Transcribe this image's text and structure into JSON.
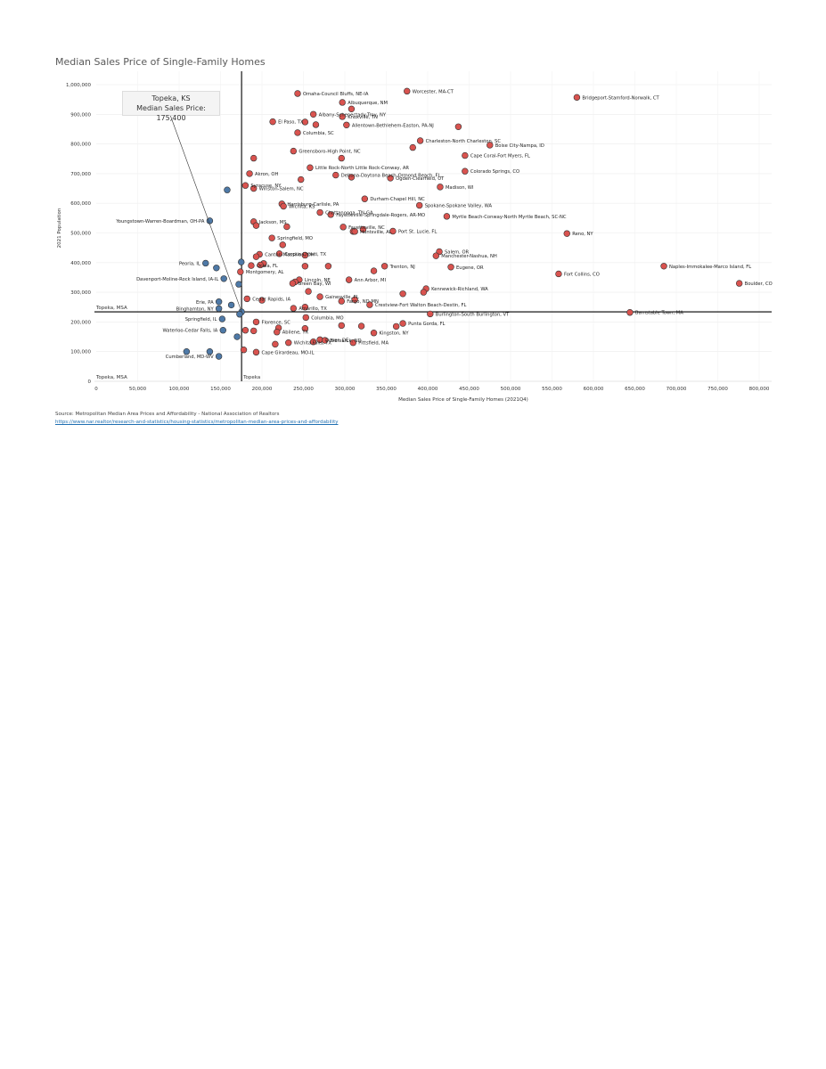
{
  "page": {
    "title": "Median Sales Price of Single-Family Homes",
    "source": "Source: Metropolitan Median Area Prices and Affordability - National Association of Realtors",
    "source_url": "https://www.nar.realtor/research-and-statistics/housing-statistics/metropolitan-median-area-prices-and-affordability"
  },
  "tooltip": {
    "title": "Topeka, KS",
    "detail": "Median Sales Price: 175,400"
  },
  "colors": {
    "above": "#d9534f",
    "below": "#4e79a7",
    "reference_line": "#000000"
  },
  "chart_data": {
    "type": "scatter",
    "xlabel": "Median Sales Price of Single-Family Homes (2021Q4)",
    "ylabel": "2021 Population",
    "xlim": [
      0,
      825000
    ],
    "ylim": [
      0,
      1030000
    ],
    "xticks": [
      "0",
      "50,000",
      "100,000",
      "150,000",
      "200,000",
      "250,000",
      "300,000",
      "350,000",
      "400,000",
      "450,000",
      "500,000",
      "550,000",
      "600,000",
      "650,000",
      "700,000",
      "750,000",
      "800,000"
    ],
    "yticks": [
      "0",
      "100,000",
      "200,000",
      "300,000",
      "400,000",
      "500,000",
      "600,000",
      "700,000",
      "800,000",
      "900,000",
      "1,000,000"
    ],
    "reference_lines": {
      "x": 175400,
      "x_label": "Topeka",
      "y": 234000,
      "y_label": "Topeka, MSA",
      "y_label_zero": "Topeka, MSA"
    },
    "points": [
      {
        "name": "Worcester, MA-CT",
        "x": 375000,
        "y": 978000,
        "c": "r"
      },
      {
        "name": "Bridgeport-Stamford-Norwalk, CT",
        "x": 580000,
        "y": 957000,
        "c": "r"
      },
      {
        "name": "Omaha-Council Bluffs, NE-IA",
        "x": 243000,
        "y": 970000,
        "c": "r"
      },
      {
        "name": "Albuquerque, NM",
        "x": 297000,
        "y": 940000,
        "c": "r"
      },
      {
        "name": "",
        "x": 308000,
        "y": 918000,
        "c": "r"
      },
      {
        "name": "Albany-Schenectady-Troy, NY",
        "x": 262000,
        "y": 900000,
        "c": "r"
      },
      {
        "name": "Knoxville, TN",
        "x": 297000,
        "y": 892000,
        "c": "r"
      },
      {
        "name": "El Paso, TX",
        "x": 213000,
        "y": 875000,
        "c": "r"
      },
      {
        "name": "",
        "x": 252000,
        "y": 874000,
        "c": "r"
      },
      {
        "name": "",
        "x": 265000,
        "y": 865000,
        "c": "r"
      },
      {
        "name": "Allentown-Bethlehem-Easton, PA-NJ",
        "x": 302000,
        "y": 864000,
        "c": "r"
      },
      {
        "name": "",
        "x": 437000,
        "y": 858000,
        "c": "r"
      },
      {
        "name": "Columbia, SC",
        "x": 243000,
        "y": 838000,
        "c": "r"
      },
      {
        "name": "Charleston-North Charleston, SC",
        "x": 391000,
        "y": 811000,
        "c": "r"
      },
      {
        "name": "Boise City-Nampa, ID",
        "x": 475000,
        "y": 796000,
        "c": "r"
      },
      {
        "name": "",
        "x": 382000,
        "y": 788000,
        "c": "r"
      },
      {
        "name": "Greensboro-High Point, NC",
        "x": 238000,
        "y": 776000,
        "c": "r"
      },
      {
        "name": "Cape Coral-Fort Myers, FL",
        "x": 445000,
        "y": 761000,
        "c": "r"
      },
      {
        "name": "",
        "x": 190000,
        "y": 752000,
        "c": "r"
      },
      {
        "name": "",
        "x": 296000,
        "y": 752000,
        "c": "r"
      },
      {
        "name": "Little Rock-North Little Rock-Conway, AR",
        "x": 258000,
        "y": 720000,
        "c": "r"
      },
      {
        "name": "Colorado Springs, CO",
        "x": 445000,
        "y": 708000,
        "c": "r"
      },
      {
        "name": "Akron, OH",
        "x": 185000,
        "y": 700000,
        "c": "r"
      },
      {
        "name": "Deltona-Daytona Beach-Ormond Beach, FL",
        "x": 289000,
        "y": 695000,
        "c": "r"
      },
      {
        "name": "",
        "x": 308000,
        "y": 688000,
        "c": "r"
      },
      {
        "name": "Ogden-Clearfield, UT",
        "x": 355000,
        "y": 685000,
        "c": "r"
      },
      {
        "name": "",
        "x": 247000,
        "y": 680000,
        "c": "r"
      },
      {
        "name": "Syracuse, NY",
        "x": 180000,
        "y": 660000,
        "c": "r"
      },
      {
        "name": "Madison, WI",
        "x": 415000,
        "y": 655000,
        "c": "r"
      },
      {
        "name": "Winston-Salem, NC",
        "x": 190000,
        "y": 650000,
        "c": "r"
      },
      {
        "name": "",
        "x": 158000,
        "y": 645000,
        "c": "b"
      },
      {
        "name": "Durham-Chapel Hill, NC",
        "x": 324000,
        "y": 615000,
        "c": "r"
      },
      {
        "name": "Harrisburg-Carlisle, PA",
        "x": 224000,
        "y": 598000,
        "c": "r"
      },
      {
        "name": "Spokane-Spokane Valley, WA",
        "x": 390000,
        "y": 593000,
        "c": "r"
      },
      {
        "name": "Wichita, KS",
        "x": 226000,
        "y": 590000,
        "c": "r"
      },
      {
        "name": "Chattanooga, TN-GA",
        "x": 270000,
        "y": 569000,
        "c": "r"
      },
      {
        "name": "Fayetteville-Springdale-Rogers, AR-MO",
        "x": 283000,
        "y": 562000,
        "c": "r"
      },
      {
        "name": "Myrtle Beach-Conway-North Myrtle Beach, SC-NC",
        "x": 423000,
        "y": 556000,
        "c": "r"
      },
      {
        "name": "Youngstown-Warren-Boardman, OH-PA",
        "x": 137000,
        "y": 541000,
        "c": "b"
      },
      {
        "name": "Jackson, MS",
        "x": 190000,
        "y": 538000,
        "c": "r"
      },
      {
        "name": "",
        "x": 193000,
        "y": 525000,
        "c": "r"
      },
      {
        "name": "",
        "x": 230000,
        "y": 521000,
        "c": "r"
      },
      {
        "name": "",
        "x": 322000,
        "y": 512000,
        "c": "r"
      },
      {
        "name": "Port St. Lucie, FL",
        "x": 358000,
        "y": 506000,
        "c": "r"
      },
      {
        "name": "",
        "x": 310000,
        "y": 505000,
        "c": "r"
      },
      {
        "name": "Fayetteville, NC",
        "x": 298000,
        "y": 520000,
        "c": "r"
      },
      {
        "name": "Huntsville, AL",
        "x": 312000,
        "y": 505000,
        "c": "r"
      },
      {
        "name": "Reno, NY",
        "x": 568000,
        "y": 498000,
        "c": "r"
      },
      {
        "name": "Springfield, MO",
        "x": 212000,
        "y": 483000,
        "c": "r"
      },
      {
        "name": "",
        "x": 225000,
        "y": 460000,
        "c": "r"
      },
      {
        "name": "Salem, OR",
        "x": 414000,
        "y": 437000,
        "c": "r"
      },
      {
        "name": "Corpus Christi, TX",
        "x": 221000,
        "y": 430000,
        "c": "r"
      },
      {
        "name": "",
        "x": 252000,
        "y": 425000,
        "c": "r"
      },
      {
        "name": "Manchester-Nashua, NH",
        "x": 410000,
        "y": 423000,
        "c": "r"
      },
      {
        "name": "Canton-Massillon, OH",
        "x": 197000,
        "y": 428000,
        "c": "r"
      },
      {
        "name": "",
        "x": 193000,
        "y": 420000,
        "c": "r"
      },
      {
        "name": "",
        "x": 175000,
        "y": 402000,
        "c": "b"
      },
      {
        "name": "Peoria, IL",
        "x": 132000,
        "y": 398000,
        "c": "b"
      },
      {
        "name": "",
        "x": 202000,
        "y": 397000,
        "c": "r"
      },
      {
        "name": "",
        "x": 198000,
        "y": 392000,
        "c": "r"
      },
      {
        "name": "Ocala, FL",
        "x": 187000,
        "y": 390000,
        "c": "r"
      },
      {
        "name": "",
        "x": 252000,
        "y": 388000,
        "c": "r"
      },
      {
        "name": "",
        "x": 280000,
        "y": 388000,
        "c": "r"
      },
      {
        "name": "Trenton, NJ",
        "x": 348000,
        "y": 388000,
        "c": "r"
      },
      {
        "name": "Eugene, OR",
        "x": 428000,
        "y": 385000,
        "c": "r"
      },
      {
        "name": "Naples-Immokalee-Marco Island, FL",
        "x": 685000,
        "y": 388000,
        "c": "r"
      },
      {
        "name": "",
        "x": 145000,
        "y": 382000,
        "c": "b"
      },
      {
        "name": "",
        "x": 335000,
        "y": 372000,
        "c": "r"
      },
      {
        "name": "Montgomery, AL",
        "x": 174000,
        "y": 369000,
        "c": "r"
      },
      {
        "name": "Fort Collins, CO",
        "x": 558000,
        "y": 362000,
        "c": "r"
      },
      {
        "name": "Davenport-Moline-Rock Island, IA-IL",
        "x": 154000,
        "y": 346000,
        "c": "b"
      },
      {
        "name": "Lincoln, NE",
        "x": 245000,
        "y": 342000,
        "c": "r"
      },
      {
        "name": "Ann Arbor, MI",
        "x": 305000,
        "y": 342000,
        "c": "r"
      },
      {
        "name": "",
        "x": 240000,
        "y": 335000,
        "c": "r"
      },
      {
        "name": "Green Bay, WI",
        "x": 237000,
        "y": 330000,
        "c": "r"
      },
      {
        "name": "Boulder, CO",
        "x": 776000,
        "y": 330000,
        "c": "r"
      },
      {
        "name": "",
        "x": 172000,
        "y": 327000,
        "c": "b"
      },
      {
        "name": "Kennewick-Richland, WA",
        "x": 398000,
        "y": 312000,
        "c": "r"
      },
      {
        "name": "",
        "x": 256000,
        "y": 303000,
        "c": "r"
      },
      {
        "name": "",
        "x": 395000,
        "y": 300000,
        "c": "r"
      },
      {
        "name": "",
        "x": 370000,
        "y": 295000,
        "c": "r"
      },
      {
        "name": "Gainesville, FL",
        "x": 270000,
        "y": 285000,
        "c": "r"
      },
      {
        "name": "Cedar Rapids, IA",
        "x": 182000,
        "y": 278000,
        "c": "r"
      },
      {
        "name": "",
        "x": 200000,
        "y": 273000,
        "c": "r"
      },
      {
        "name": "",
        "x": 312000,
        "y": 275000,
        "c": "r"
      },
      {
        "name": "Fargo, ND-MN",
        "x": 296000,
        "y": 270000,
        "c": "r"
      },
      {
        "name": "Erie, PA",
        "x": 148000,
        "y": 268000,
        "c": "b"
      },
      {
        "name": "Crestview-Fort Walton Beach-Destin, FL",
        "x": 330000,
        "y": 258000,
        "c": "r"
      },
      {
        "name": "",
        "x": 163000,
        "y": 257000,
        "c": "b"
      },
      {
        "name": "Binghamton, NY",
        "x": 148000,
        "y": 245000,
        "c": "b"
      },
      {
        "name": "Amarillo, TX",
        "x": 238000,
        "y": 246000,
        "c": "r"
      },
      {
        "name": "",
        "x": 252000,
        "y": 250000,
        "c": "r"
      },
      {
        "name": "",
        "x": 175400,
        "y": 234000,
        "c": "b"
      },
      {
        "name": "",
        "x": 173000,
        "y": 226000,
        "c": "b"
      },
      {
        "name": "Burlington-South Burlington, VT",
        "x": 403000,
        "y": 227000,
        "c": "r"
      },
      {
        "name": "Barnstable Town, MA",
        "x": 644000,
        "y": 232000,
        "c": "r"
      },
      {
        "name": "Columbia, MO",
        "x": 253000,
        "y": 215000,
        "c": "r"
      },
      {
        "name": "Springfield, IL",
        "x": 152000,
        "y": 210000,
        "c": "b"
      },
      {
        "name": "Florence, SC",
        "x": 193000,
        "y": 200000,
        "c": "r"
      },
      {
        "name": "Punta Gorda, FL",
        "x": 370000,
        "y": 195000,
        "c": "r"
      },
      {
        "name": "",
        "x": 296000,
        "y": 188000,
        "c": "r"
      },
      {
        "name": "",
        "x": 320000,
        "y": 186000,
        "c": "r"
      },
      {
        "name": "",
        "x": 362000,
        "y": 185000,
        "c": "r"
      },
      {
        "name": "",
        "x": 220000,
        "y": 180000,
        "c": "r"
      },
      {
        "name": "",
        "x": 252000,
        "y": 178000,
        "c": "r"
      },
      {
        "name": "Waterloo-Cedar Falls, IA",
        "x": 153000,
        "y": 172000,
        "c": "b"
      },
      {
        "name": "",
        "x": 180000,
        "y": 172000,
        "c": "r"
      },
      {
        "name": "",
        "x": 190000,
        "y": 170000,
        "c": "r"
      },
      {
        "name": "Abilene, TX",
        "x": 218000,
        "y": 166000,
        "c": "r"
      },
      {
        "name": "Kingston, NY",
        "x": 335000,
        "y": 163000,
        "c": "r"
      },
      {
        "name": "",
        "x": 170000,
        "y": 150000,
        "c": "b"
      },
      {
        "name": "Dover, DE",
        "x": 270000,
        "y": 140000,
        "c": "r"
      },
      {
        "name": "",
        "x": 262000,
        "y": 133000,
        "c": "r"
      },
      {
        "name": "Wichita Falls, TX",
        "x": 232000,
        "y": 130000,
        "c": "r"
      },
      {
        "name": "",
        "x": 216000,
        "y": 125000,
        "c": "r"
      },
      {
        "name": "Pittsfield, MA",
        "x": 310000,
        "y": 130000,
        "c": "r"
      },
      {
        "name": "Bismarck, ND",
        "x": 276000,
        "y": 138000,
        "c": "r"
      },
      {
        "name": "",
        "x": 178000,
        "y": 106000,
        "c": "r"
      },
      {
        "name": "",
        "x": 109000,
        "y": 100000,
        "c": "b"
      },
      {
        "name": "",
        "x": 137000,
        "y": 100000,
        "c": "b"
      },
      {
        "name": "Cape Girardeau, MO-IL",
        "x": 193000,
        "y": 98000,
        "c": "r"
      },
      {
        "name": "Cumberland, MD-WV",
        "x": 148000,
        "y": 84000,
        "c": "b"
      }
    ]
  }
}
